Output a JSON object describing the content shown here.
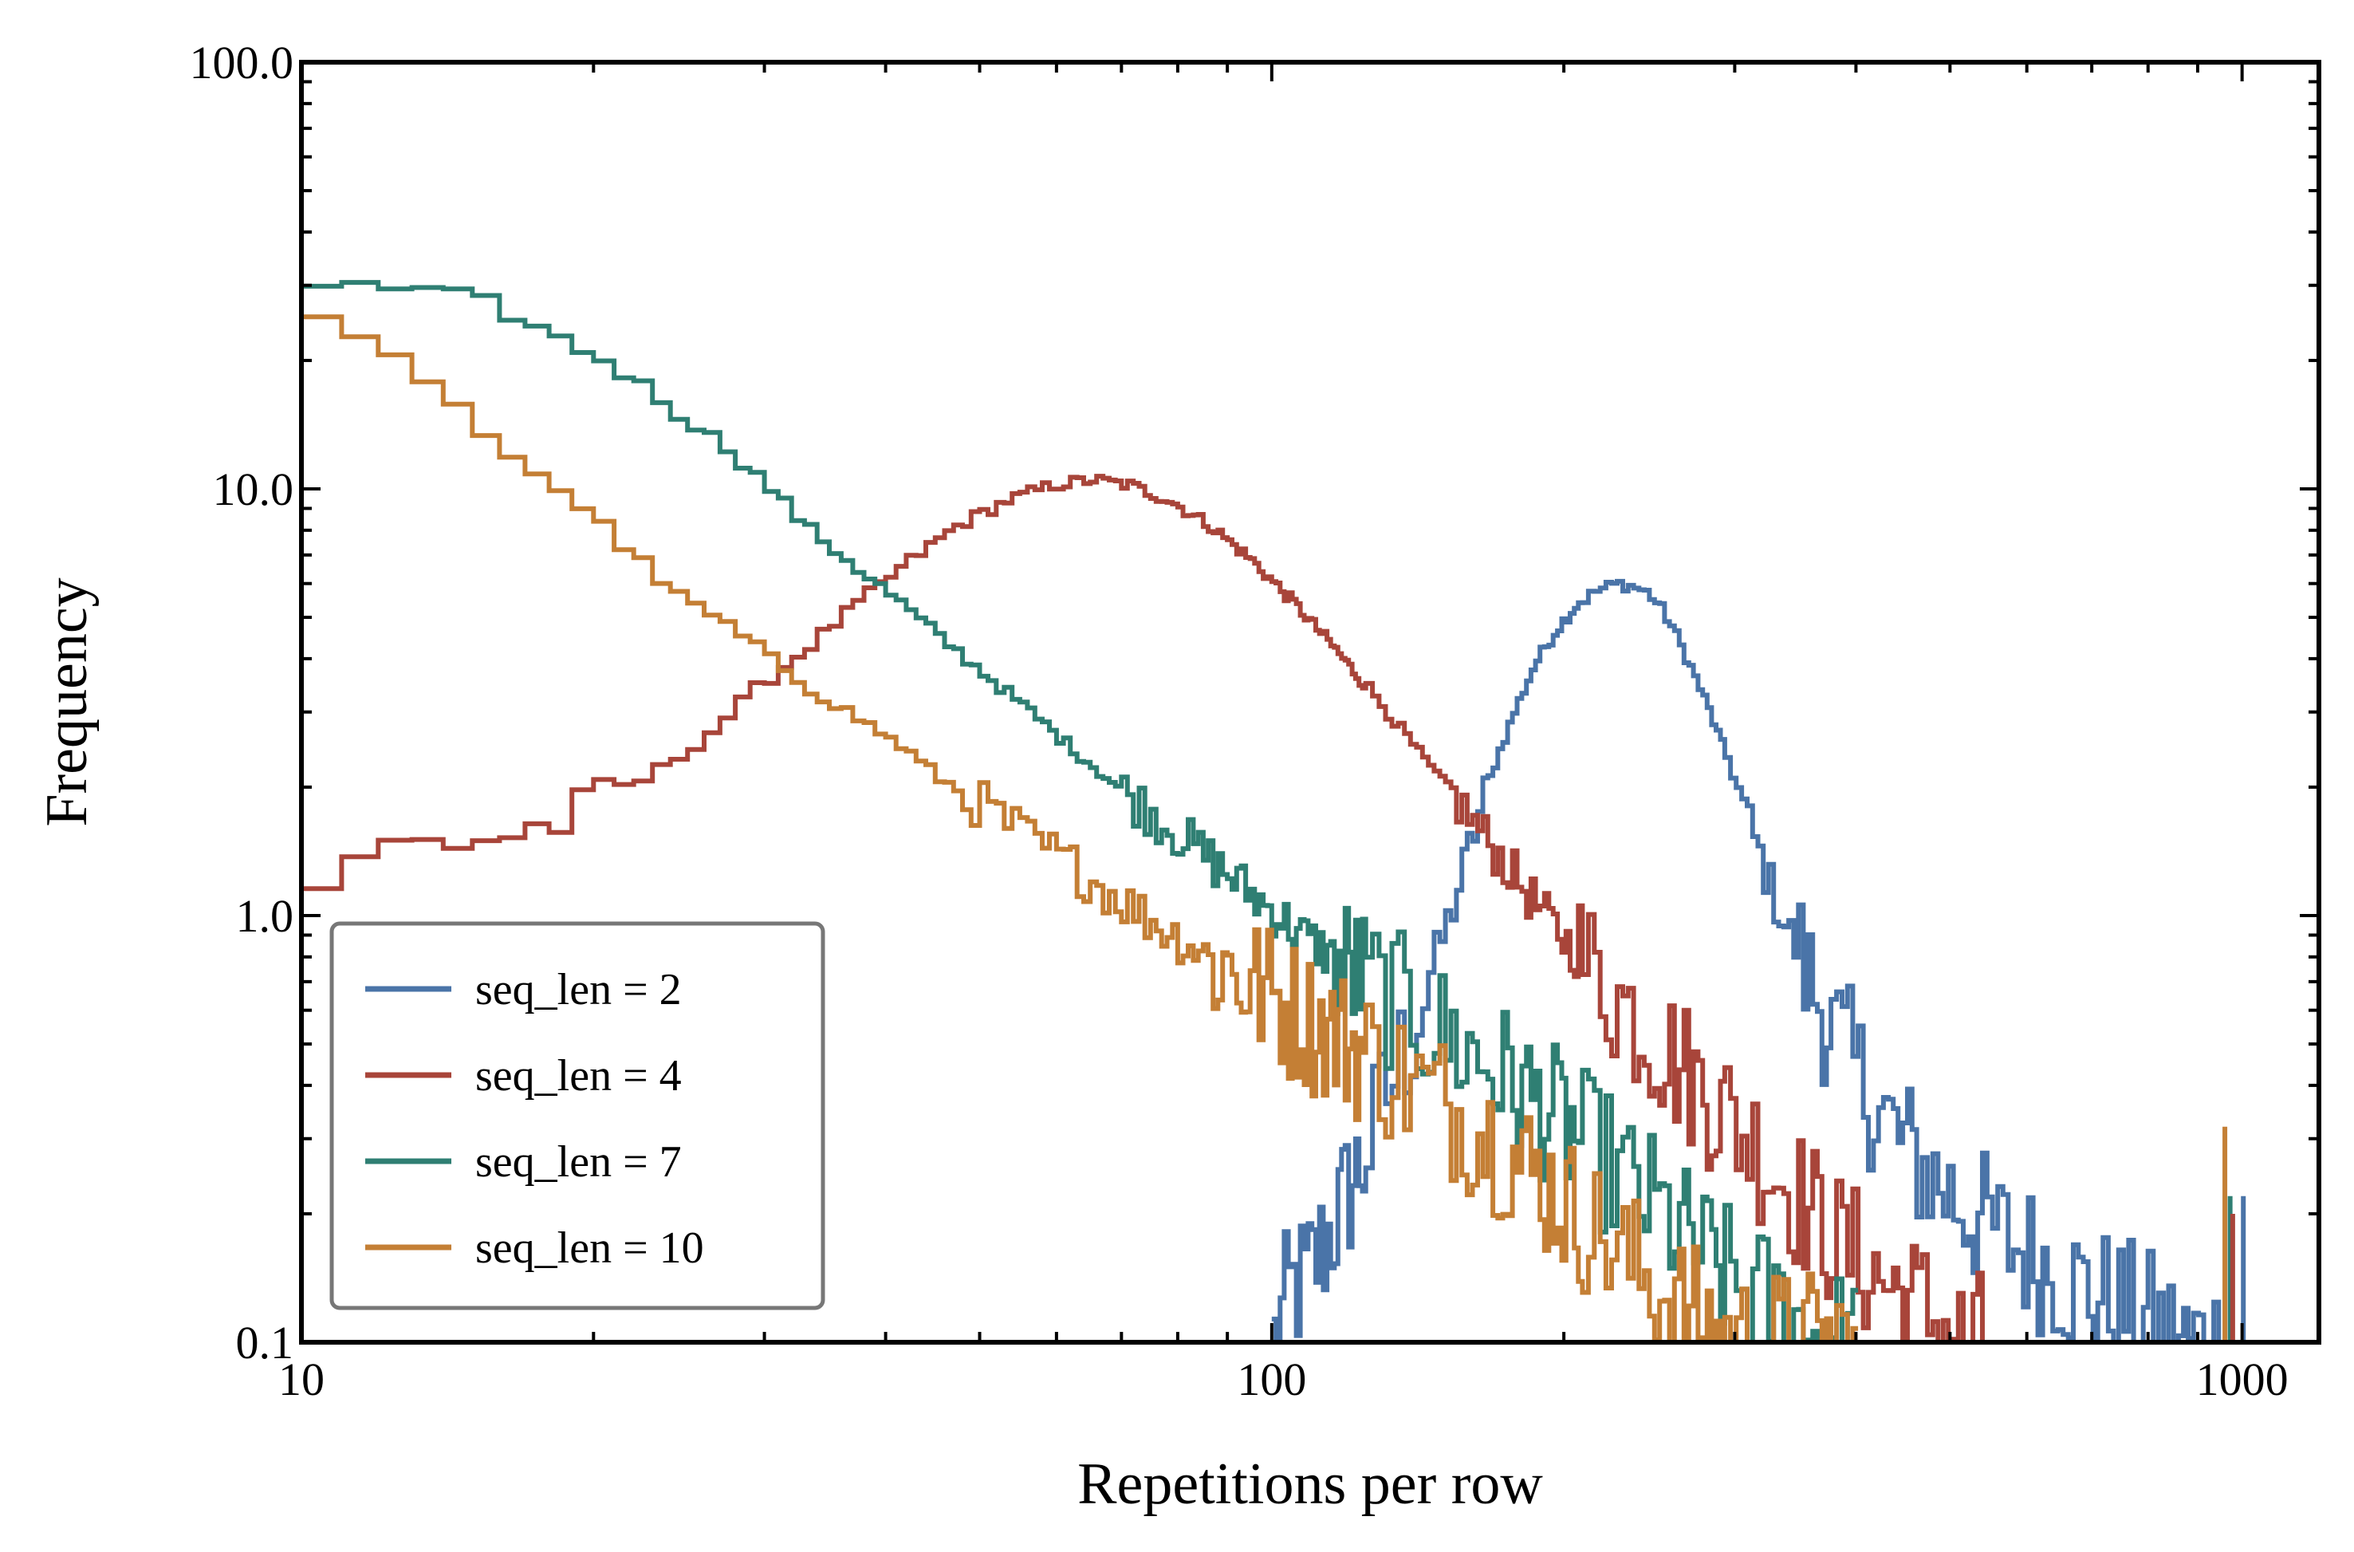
{
  "chart_data": {
    "type": "line",
    "title": "",
    "xlabel": "Repetitions per row",
    "ylabel": "Frequency",
    "xscale": "log",
    "yscale": "log",
    "xlim": [
      10,
      1200
    ],
    "ylim": [
      0.1,
      100
    ],
    "xticks": [
      10,
      100,
      1000
    ],
    "xtick_labels": [
      "10",
      "100",
      "1000"
    ],
    "yticks": [
      0.1,
      1,
      10,
      100
    ],
    "ytick_labels": [
      "0.1",
      "1.0",
      "10.0",
      "100.0"
    ],
    "grid": false,
    "legend_position": "lower-left",
    "drawstyle": "steps",
    "series": [
      {
        "name": "seq_len = 2",
        "color": "#4a74a8",
        "x": [
          100,
          104,
          108,
          113,
          118,
          124,
          130,
          137,
          144,
          152,
          160,
          168,
          177,
          186,
          196,
          206,
          216,
          226,
          235,
          243,
          250,
          258,
          268,
          280,
          294,
          310,
          328,
          350,
          375,
          405,
          440,
          480,
          525,
          575,
          630,
          690,
          750,
          810,
          870,
          930,
          990
        ],
        "y": [
          0.1,
          0.13,
          0.14,
          0.17,
          0.21,
          0.27,
          0.37,
          0.5,
          0.7,
          1.0,
          1.5,
          2.2,
          3.0,
          3.9,
          4.7,
          5.4,
          5.8,
          6.0,
          5.9,
          5.7,
          5.3,
          4.7,
          3.9,
          3.1,
          2.3,
          1.6,
          1.1,
          0.78,
          0.55,
          0.4,
          0.3,
          0.24,
          0.2,
          0.17,
          0.15,
          0.13,
          0.12,
          0.11,
          0.1,
          0.1,
          0.1
        ]
      },
      {
        "name": "seq_len = 4",
        "color": "#a8453a",
        "x": [
          10,
          11,
          12,
          14,
          16,
          18,
          20,
          23,
          26,
          29,
          33,
          37,
          42,
          47,
          53,
          59,
          65,
          71,
          78,
          86,
          95,
          105,
          116,
          128,
          141,
          156,
          172,
          190,
          210,
          232,
          256,
          283,
          313,
          346,
          382,
          422,
          466,
          515,
          550
        ],
        "y": [
          1.2,
          1.3,
          1.45,
          1.5,
          1.55,
          1.65,
          1.85,
          2.2,
          2.7,
          3.4,
          4.3,
          5.4,
          6.8,
          8.2,
          9.4,
          10.2,
          10.5,
          10.2,
          9.4,
          8.2,
          6.8,
          5.4,
          4.2,
          3.2,
          2.4,
          1.8,
          1.35,
          1.0,
          0.77,
          0.6,
          0.47,
          0.37,
          0.29,
          0.22,
          0.17,
          0.14,
          0.12,
          0.1,
          0.1
        ]
      },
      {
        "name": "seq_len = 7",
        "color": "#2f7f73",
        "x": [
          10,
          11,
          12,
          13,
          14,
          15,
          16,
          18,
          20,
          22,
          24,
          27,
          30,
          33,
          37,
          41,
          45,
          50,
          56,
          62,
          69,
          77,
          86,
          96,
          107,
          120,
          134,
          150,
          168,
          188,
          210,
          235,
          263,
          295,
          330,
          370,
          400
        ],
        "y": [
          30,
          29.8,
          29.3,
          28.8,
          28.5,
          27.5,
          25.5,
          22.5,
          20.0,
          17.5,
          15.0,
          12.5,
          10.0,
          8.0,
          6.5,
          5.4,
          4.5,
          3.7,
          3.0,
          2.45,
          2.0,
          1.65,
          1.35,
          1.1,
          0.9,
          0.75,
          0.62,
          0.52,
          0.44,
          0.36,
          0.29,
          0.23,
          0.18,
          0.14,
          0.12,
          0.1,
          0.1
        ]
      },
      {
        "name": "seq_len = 10",
        "color": "#c47f35",
        "x": [
          10,
          11,
          12,
          13,
          14,
          15,
          16,
          18,
          20,
          22,
          24,
          27,
          30,
          33,
          37,
          41,
          45,
          50,
          56,
          62,
          69,
          77,
          86,
          96,
          107,
          120,
          134,
          150,
          168,
          188,
          210,
          235,
          263,
          295,
          330,
          370,
          400
        ],
        "y": [
          26,
          22.5,
          20.0,
          17.5,
          15.5,
          13.5,
          12.0,
          10.0,
          8.2,
          6.7,
          5.6,
          4.8,
          4.0,
          3.4,
          2.9,
          2.5,
          2.1,
          1.8,
          1.5,
          1.3,
          1.1,
          0.93,
          0.8,
          0.68,
          0.58,
          0.5,
          0.42,
          0.36,
          0.3,
          0.24,
          0.19,
          0.15,
          0.12,
          0.1,
          0.1,
          0.1,
          0.1
        ]
      }
    ],
    "extra_spikes": [
      {
        "series_index": 3,
        "x": 960,
        "y": 0.32
      },
      {
        "series_index": 2,
        "x": 972,
        "y": 0.22
      },
      {
        "series_index": 1,
        "x": 978,
        "y": 0.2
      },
      {
        "series_index": 0,
        "x": 1003,
        "y": 0.22
      }
    ]
  }
}
